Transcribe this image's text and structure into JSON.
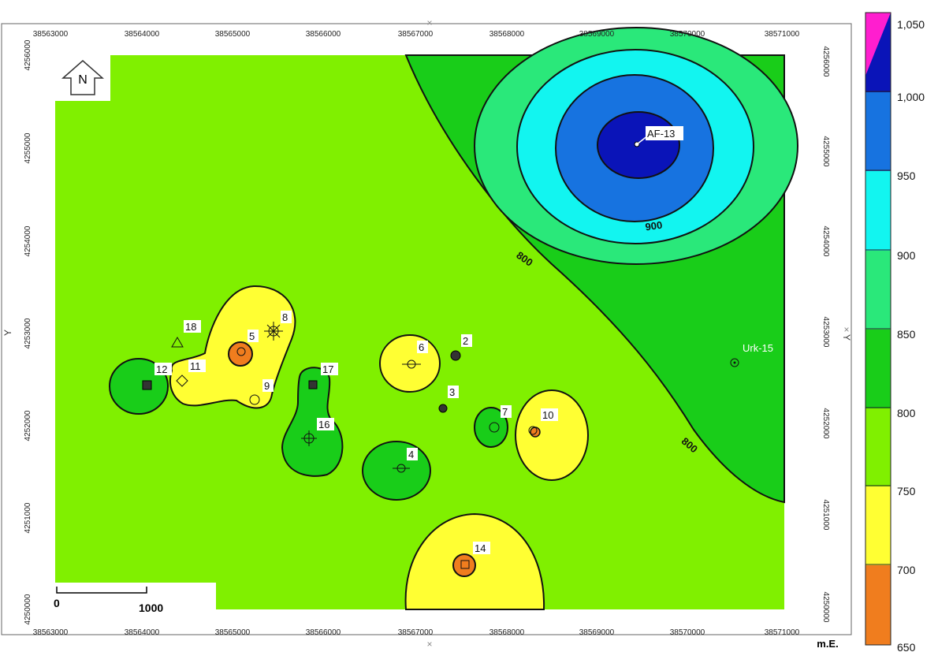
{
  "map": {
    "x_ticks": [
      "38563000",
      "38564000",
      "38565000",
      "38566000",
      "38567000",
      "38568000",
      "38569000",
      "38570000",
      "38571000"
    ],
    "y_ticks": [
      "4256000",
      "4255000",
      "4254000",
      "4253000",
      "4252000",
      "4251000",
      "4250000"
    ],
    "x_axis_unit": "m.E.",
    "y_axis_label": "Y",
    "north_label": "N",
    "scale_bar": {
      "start_label": "0",
      "end_label": "1000"
    },
    "contour_labels": {
      "upper": "800",
      "lower": "800",
      "top": "900"
    },
    "colors": {
      "c650_700": "#f07d1e",
      "c700_750": "#ffff33",
      "c750_800": "#80f000",
      "c800_850": "#19cd19",
      "c850_900": "#2ae87a",
      "c900_950": "#12f5f0",
      "c950_1000": "#1773e0",
      "c1000_1050": "#0a14b8",
      "c_top": "#ff1ecf"
    },
    "wells": [
      {
        "id": "w-af13",
        "label": "AF-13"
      },
      {
        "id": "w-urk15",
        "label": "Urk-15"
      },
      {
        "id": "w-2",
        "label": "2"
      },
      {
        "id": "w-3",
        "label": "3"
      },
      {
        "id": "w-4",
        "label": "4"
      },
      {
        "id": "w-5",
        "label": "5"
      },
      {
        "id": "w-6",
        "label": "6"
      },
      {
        "id": "w-7",
        "label": "7"
      },
      {
        "id": "w-8",
        "label": "8"
      },
      {
        "id": "w-9",
        "label": "9"
      },
      {
        "id": "w-10",
        "label": "10"
      },
      {
        "id": "w-11",
        "label": "11"
      },
      {
        "id": "w-12",
        "label": "12"
      },
      {
        "id": "w-14",
        "label": "14"
      },
      {
        "id": "w-16",
        "label": "16"
      },
      {
        "id": "w-17",
        "label": "17"
      },
      {
        "id": "w-18",
        "label": "18"
      }
    ]
  },
  "legend": {
    "labels": [
      "1,050",
      "1,000",
      "950",
      "900",
      "850",
      "800",
      "750",
      "700",
      "650"
    ]
  }
}
